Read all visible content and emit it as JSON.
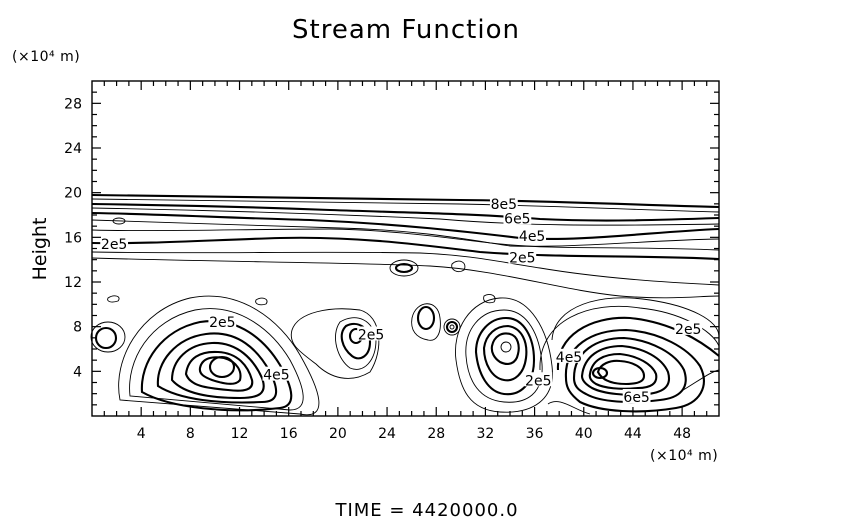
{
  "chart_data": {
    "type": "contour",
    "title": "Stream Function",
    "ylabel": "Height",
    "y_unit": "(×10⁴ m)",
    "x_unit": "(×10⁴ m)",
    "footer": "TIME  =  4420000.0",
    "xlim": [
      0,
      51
    ],
    "ylim": [
      0,
      30
    ],
    "x_ticks": [
      4,
      8,
      12,
      16,
      20,
      24,
      28,
      32,
      36,
      40,
      44,
      48
    ],
    "y_ticks": [
      4,
      8,
      12,
      16,
      20,
      24,
      28
    ],
    "contour_labels": [
      {
        "text": "8e5",
        "x": 33.5,
        "y": 19.0
      },
      {
        "text": "6e5",
        "x": 34.6,
        "y": 17.7
      },
      {
        "text": "4e5",
        "x": 35.8,
        "y": 16.1
      },
      {
        "text": "2e5",
        "x": 35.0,
        "y": 14.2
      },
      {
        "text": "2e5",
        "x": 1.8,
        "y": 15.4
      },
      {
        "text": "2e5",
        "x": 10.6,
        "y": 8.4
      },
      {
        "text": "2e5",
        "x": 48.5,
        "y": 7.8
      },
      {
        "text": "2e5",
        "x": 22.7,
        "y": 7.3
      },
      {
        "text": "4e5",
        "x": 15.0,
        "y": 3.7
      },
      {
        "text": "2e5",
        "x": 36.3,
        "y": 3.2
      },
      {
        "text": "4e5",
        "x": 38.8,
        "y": 5.3
      },
      {
        "text": "6e5",
        "x": 44.3,
        "y": 1.7
      }
    ]
  }
}
